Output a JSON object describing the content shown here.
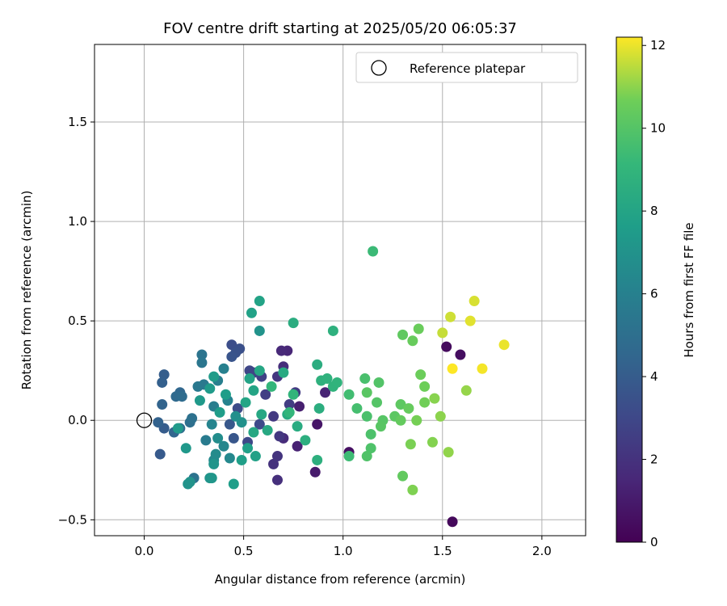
{
  "chart_data": {
    "type": "scatter",
    "title": "FOV centre drift starting at 2025/05/20 06:05:37",
    "xlabel": "Angular distance from reference (arcmin)",
    "ylabel": "Rotation from reference (arcmin)",
    "xlim": [
      -0.25,
      2.22
    ],
    "ylim": [
      -0.58,
      1.89
    ],
    "xticks": [
      0.0,
      0.5,
      1.0,
      1.5,
      2.0
    ],
    "xtick_labels": [
      "0.0",
      "0.5",
      "1.0",
      "1.5",
      "2.0"
    ],
    "yticks": [
      -0.5,
      0.0,
      0.5,
      1.0,
      1.5
    ],
    "ytick_labels": [
      "−0.5",
      "0.0",
      "0.5",
      "1.0",
      "1.5"
    ],
    "grid": true,
    "legend": {
      "position": "top-right",
      "entries": [
        {
          "label": "Reference platepar",
          "marker": "open-circle"
        }
      ]
    },
    "reference_point": {
      "x": 0.0,
      "y": 0.0,
      "label": "Reference platepar"
    },
    "colorbar": {
      "label": "Hours from first FF file",
      "colormap": "viridis",
      "range": [
        0,
        12.2
      ],
      "ticks": [
        0,
        2,
        4,
        6,
        8,
        10,
        12
      ],
      "tick_labels": [
        "0",
        "2",
        "4",
        "6",
        "8",
        "10",
        "12"
      ]
    },
    "points": [
      {
        "x": 1.55,
        "y": -0.51,
        "h": 0.3
      },
      {
        "x": 1.52,
        "y": 0.37,
        "h": 0.4
      },
      {
        "x": 1.59,
        "y": 0.33,
        "h": 0.5
      },
      {
        "x": 1.03,
        "y": -0.16,
        "h": 0.6
      },
      {
        "x": 0.87,
        "y": -0.02,
        "h": 0.8
      },
      {
        "x": 0.86,
        "y": -0.26,
        "h": 1.0
      },
      {
        "x": 0.78,
        "y": 0.07,
        "h": 1.2
      },
      {
        "x": 0.77,
        "y": -0.13,
        "h": 1.3
      },
      {
        "x": 0.91,
        "y": 0.14,
        "h": 1.4
      },
      {
        "x": 0.72,
        "y": 0.35,
        "h": 1.5
      },
      {
        "x": 0.69,
        "y": 0.35,
        "h": 1.6
      },
      {
        "x": 0.7,
        "y": 0.27,
        "h": 1.8
      },
      {
        "x": 0.7,
        "y": -0.09,
        "h": 1.7
      },
      {
        "x": 0.67,
        "y": -0.3,
        "h": 1.9
      },
      {
        "x": 0.65,
        "y": -0.22,
        "h": 2.0
      },
      {
        "x": 0.67,
        "y": -0.18,
        "h": 2.1
      },
      {
        "x": 0.68,
        "y": -0.08,
        "h": 2.2
      },
      {
        "x": 0.65,
        "y": 0.02,
        "h": 2.3
      },
      {
        "x": 0.67,
        "y": 0.22,
        "h": 2.2
      },
      {
        "x": 0.76,
        "y": 0.14,
        "h": 2.4
      },
      {
        "x": 0.73,
        "y": 0.08,
        "h": 2.5
      },
      {
        "x": 0.61,
        "y": 0.13,
        "h": 2.6
      },
      {
        "x": 0.59,
        "y": 0.22,
        "h": 2.7
      },
      {
        "x": 0.55,
        "y": 0.24,
        "h": 2.8
      },
      {
        "x": 0.53,
        "y": 0.25,
        "h": 2.9
      },
      {
        "x": 0.52,
        "y": -0.11,
        "h": 3.0
      },
      {
        "x": 0.58,
        "y": -0.02,
        "h": 3.1
      },
      {
        "x": 0.47,
        "y": 0.06,
        "h": 3.2
      },
      {
        "x": 0.44,
        "y": 0.38,
        "h": 3.3
      },
      {
        "x": 0.48,
        "y": 0.36,
        "h": 3.4
      },
      {
        "x": 0.46,
        "y": 0.34,
        "h": 3.5
      },
      {
        "x": 0.44,
        "y": 0.32,
        "h": 3.6
      },
      {
        "x": 0.45,
        "y": -0.09,
        "h": 3.7
      },
      {
        "x": 0.43,
        "y": -0.02,
        "h": 3.8
      },
      {
        "x": 0.08,
        "y": -0.17,
        "h": 3.9
      },
      {
        "x": 0.1,
        "y": -0.04,
        "h": 4.0
      },
      {
        "x": 0.1,
        "y": 0.23,
        "h": 4.1
      },
      {
        "x": 0.09,
        "y": 0.19,
        "h": 4.2
      },
      {
        "x": 0.07,
        "y": -0.01,
        "h": 4.3
      },
      {
        "x": 0.09,
        "y": 0.08,
        "h": 4.4
      },
      {
        "x": 0.15,
        "y": -0.06,
        "h": 4.5
      },
      {
        "x": 0.18,
        "y": 0.14,
        "h": 4.6
      },
      {
        "x": 0.16,
        "y": 0.12,
        "h": 4.7
      },
      {
        "x": 0.19,
        "y": 0.12,
        "h": 4.8
      },
      {
        "x": 0.18,
        "y": -0.04,
        "h": 4.9
      },
      {
        "x": 0.23,
        "y": -0.01,
        "h": 5.0
      },
      {
        "x": 0.24,
        "y": 0.01,
        "h": 5.1
      },
      {
        "x": 0.25,
        "y": -0.29,
        "h": 5.2
      },
      {
        "x": 0.29,
        "y": 0.33,
        "h": 5.3
      },
      {
        "x": 0.29,
        "y": 0.29,
        "h": 5.4
      },
      {
        "x": 0.27,
        "y": 0.17,
        "h": 5.5
      },
      {
        "x": 0.3,
        "y": 0.18,
        "h": 5.6
      },
      {
        "x": 0.31,
        "y": -0.1,
        "h": 5.7
      },
      {
        "x": 0.35,
        "y": 0.07,
        "h": 5.8
      },
      {
        "x": 0.37,
        "y": 0.2,
        "h": 5.9
      },
      {
        "x": 0.4,
        "y": 0.26,
        "h": 6.0
      },
      {
        "x": 0.42,
        "y": 0.1,
        "h": 6.1
      },
      {
        "x": 0.34,
        "y": -0.02,
        "h": 6.2
      },
      {
        "x": 0.4,
        "y": -0.13,
        "h": 6.3
      },
      {
        "x": 0.43,
        "y": -0.19,
        "h": 6.4
      },
      {
        "x": 0.35,
        "y": -0.2,
        "h": 6.5
      },
      {
        "x": 0.36,
        "y": -0.17,
        "h": 6.6
      },
      {
        "x": 0.37,
        "y": -0.09,
        "h": 6.7
      },
      {
        "x": 0.46,
        "y": 0.02,
        "h": 6.8
      },
      {
        "x": 0.49,
        "y": -0.01,
        "h": 6.9
      },
      {
        "x": 0.22,
        "y": -0.32,
        "h": 7.0
      },
      {
        "x": 0.23,
        "y": -0.31,
        "h": 7.05
      },
      {
        "x": 0.33,
        "y": -0.29,
        "h": 7.1
      },
      {
        "x": 0.35,
        "y": -0.22,
        "h": 7.15
      },
      {
        "x": 0.34,
        "y": -0.29,
        "h": 7.2
      },
      {
        "x": 0.21,
        "y": -0.14,
        "h": 7.3
      },
      {
        "x": 0.17,
        "y": -0.04,
        "h": 7.4
      },
      {
        "x": 0.28,
        "y": 0.1,
        "h": 7.35
      },
      {
        "x": 0.33,
        "y": 0.16,
        "h": 7.45
      },
      {
        "x": 0.35,
        "y": 0.22,
        "h": 7.5
      },
      {
        "x": 0.38,
        "y": 0.04,
        "h": 7.55
      },
      {
        "x": 0.41,
        "y": 0.13,
        "h": 7.6
      },
      {
        "x": 0.45,
        "y": -0.32,
        "h": 7.65
      },
      {
        "x": 0.49,
        "y": -0.2,
        "h": 7.7
      },
      {
        "x": 0.52,
        "y": -0.14,
        "h": 7.75
      },
      {
        "x": 0.56,
        "y": -0.18,
        "h": 7.8
      },
      {
        "x": 0.58,
        "y": 0.45,
        "h": 7.0
      },
      {
        "x": 0.54,
        "y": 0.54,
        "h": 7.85
      },
      {
        "x": 0.58,
        "y": 0.6,
        "h": 7.9
      },
      {
        "x": 0.53,
        "y": 0.21,
        "h": 7.95
      },
      {
        "x": 0.55,
        "y": 0.15,
        "h": 8.0
      },
      {
        "x": 0.51,
        "y": 0.09,
        "h": 8.05
      },
      {
        "x": 0.58,
        "y": 0.25,
        "h": 8.1
      },
      {
        "x": 0.55,
        "y": -0.06,
        "h": 8.15
      },
      {
        "x": 0.59,
        "y": 0.03,
        "h": 8.2
      },
      {
        "x": 0.62,
        "y": -0.05,
        "h": 8.25
      },
      {
        "x": 0.7,
        "y": 0.24,
        "h": 8.3
      },
      {
        "x": 0.72,
        "y": 0.03,
        "h": 8.35
      },
      {
        "x": 0.77,
        "y": -0.03,
        "h": 8.4
      },
      {
        "x": 0.75,
        "y": 0.49,
        "h": 8.45
      },
      {
        "x": 0.87,
        "y": 0.28,
        "h": 8.5
      },
      {
        "x": 0.88,
        "y": 0.06,
        "h": 8.55
      },
      {
        "x": 0.81,
        "y": -0.1,
        "h": 8.6
      },
      {
        "x": 0.87,
        "y": -0.2,
        "h": 8.65
      },
      {
        "x": 0.95,
        "y": 0.45,
        "h": 8.7
      },
      {
        "x": 0.89,
        "y": 0.2,
        "h": 8.75
      },
      {
        "x": 0.92,
        "y": 0.21,
        "h": 8.8
      },
      {
        "x": 0.95,
        "y": 0.17,
        "h": 8.85
      },
      {
        "x": 0.97,
        "y": 0.19,
        "h": 8.9
      },
      {
        "x": 0.75,
        "y": 0.13,
        "h": 8.95
      },
      {
        "x": 0.73,
        "y": 0.04,
        "h": 9.0
      },
      {
        "x": 0.64,
        "y": 0.17,
        "h": 9.05
      },
      {
        "x": 1.15,
        "y": 0.85,
        "h": 9.3
      },
      {
        "x": 1.03,
        "y": -0.18,
        "h": 9.4
      },
      {
        "x": 1.03,
        "y": 0.13,
        "h": 9.5
      },
      {
        "x": 1.07,
        "y": 0.06,
        "h": 9.6
      },
      {
        "x": 1.11,
        "y": 0.21,
        "h": 9.7
      },
      {
        "x": 1.12,
        "y": 0.02,
        "h": 9.75
      },
      {
        "x": 1.14,
        "y": -0.07,
        "h": 9.8
      },
      {
        "x": 1.14,
        "y": -0.14,
        "h": 9.85
      },
      {
        "x": 1.12,
        "y": -0.18,
        "h": 9.9
      },
      {
        "x": 1.18,
        "y": 0.19,
        "h": 9.95
      },
      {
        "x": 1.17,
        "y": 0.09,
        "h": 10.0
      },
      {
        "x": 1.2,
        "y": 0.0,
        "h": 10.05
      },
      {
        "x": 1.19,
        "y": -0.03,
        "h": 10.1
      },
      {
        "x": 1.12,
        "y": 0.14,
        "h": 10.15
      },
      {
        "x": 1.26,
        "y": 0.02,
        "h": 10.2
      },
      {
        "x": 1.29,
        "y": 0.08,
        "h": 10.25
      },
      {
        "x": 1.3,
        "y": 0.43,
        "h": 10.3
      },
      {
        "x": 1.3,
        "y": -0.28,
        "h": 10.35
      },
      {
        "x": 1.29,
        "y": 0.0,
        "h": 10.4
      },
      {
        "x": 1.33,
        "y": 0.06,
        "h": 10.45
      },
      {
        "x": 1.35,
        "y": 0.4,
        "h": 10.5
      },
      {
        "x": 1.38,
        "y": 0.46,
        "h": 10.55
      },
      {
        "x": 1.39,
        "y": 0.23,
        "h": 10.6
      },
      {
        "x": 1.41,
        "y": 0.17,
        "h": 10.65
      },
      {
        "x": 1.41,
        "y": 0.09,
        "h": 10.7
      },
      {
        "x": 1.37,
        "y": 0.0,
        "h": 10.75
      },
      {
        "x": 1.34,
        "y": -0.12,
        "h": 10.8
      },
      {
        "x": 1.35,
        "y": -0.35,
        "h": 10.85
      },
      {
        "x": 1.45,
        "y": -0.11,
        "h": 10.9
      },
      {
        "x": 1.46,
        "y": 0.11,
        "h": 10.95
      },
      {
        "x": 1.49,
        "y": 0.02,
        "h": 11.0
      },
      {
        "x": 1.53,
        "y": -0.16,
        "h": 11.05
      },
      {
        "x": 1.62,
        "y": 0.15,
        "h": 11.1
      },
      {
        "x": 1.5,
        "y": 0.44,
        "h": 11.6
      },
      {
        "x": 1.54,
        "y": 0.52,
        "h": 11.7
      },
      {
        "x": 1.66,
        "y": 0.6,
        "h": 11.8
      },
      {
        "x": 1.64,
        "y": 0.5,
        "h": 11.9
      },
      {
        "x": 1.81,
        "y": 0.38,
        "h": 12.0
      },
      {
        "x": 1.7,
        "y": 0.26,
        "h": 12.1
      },
      {
        "x": 1.55,
        "y": 0.26,
        "h": 12.2
      }
    ]
  }
}
